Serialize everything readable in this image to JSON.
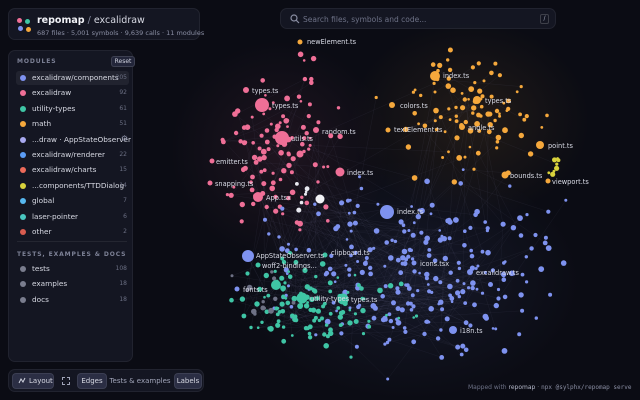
{
  "app": {
    "name": "repomap",
    "separator": "/",
    "repo": "excalidraw",
    "stats": "687 files · 5,001 symbols · 9,639 calls · 11 modules"
  },
  "search": {
    "placeholder": "Search files, symbols and code...",
    "shortcut": "/"
  },
  "sidebar": {
    "modules_heading": "MODULES",
    "reset_label": "Reset",
    "modules": [
      {
        "label": "excalidraw/components",
        "count": "205",
        "color": "#7e92ef",
        "active": true
      },
      {
        "label": "excalidraw",
        "count": "92",
        "color": "#ef6f97"
      },
      {
        "label": "utility-types",
        "count": "61",
        "color": "#3fc5a5"
      },
      {
        "label": "math",
        "count": "51",
        "color": "#f5a83c"
      },
      {
        "label": "...draw · AppStateObserver",
        "count": "36",
        "color": "#a8a9ef",
        "gear": true
      },
      {
        "label": "excalidraw/renderer",
        "count": "22",
        "color": "#5b9cf5"
      },
      {
        "label": "excalidraw/charts",
        "count": "15",
        "color": "#ed6a5a"
      },
      {
        "label": "...components/TTDDialog",
        "count": "14",
        "color": "#d8d23c"
      },
      {
        "label": "global",
        "count": "7",
        "color": "#57b8f0"
      },
      {
        "label": "laser-pointer",
        "count": "6",
        "color": "#49c6c0"
      },
      {
        "label": "other",
        "count": "2",
        "color": "#d85c50"
      }
    ],
    "docs_heading": "TESTS, EXAMPLES & DOCS",
    "docs": [
      {
        "label": "tests",
        "count": "108",
        "color": "#7a7d8e"
      },
      {
        "label": "examples",
        "count": "18",
        "color": "#7a7d8e"
      },
      {
        "label": "docs",
        "count": "18",
        "color": "#7a7d8e"
      }
    ]
  },
  "toolbar": {
    "layout_label": "Layout",
    "fullscreen_icon": "expand-icon",
    "edges_label": "Edges",
    "tests_label": "Tests & examples",
    "labels_label": "Labels"
  },
  "footer": {
    "prefix": "Mapped with",
    "brand": "repomap",
    "dot": "·",
    "command": "npx @sylphx/repomap serve"
  },
  "graph_labels": [
    "newElement.ts",
    "index.ts",
    "types.ts",
    "types.ts",
    "colors.ts",
    "types.ts",
    "textElement.ts",
    "angle.ts",
    "utils.ts",
    "random.ts",
    "point.ts",
    "emitter.ts",
    "index.ts",
    "bounds.ts",
    "snapping.ts",
    "viewport.ts",
    "App.tsx",
    "index.ts",
    "clipboard.ts",
    "AppStateObserver.ts",
    "woff2-bindings...",
    "icons.tsx",
    "excalidraw.ts",
    "fonts.ts",
    "utility-types",
    "types.ts",
    "i18n.ts"
  ]
}
